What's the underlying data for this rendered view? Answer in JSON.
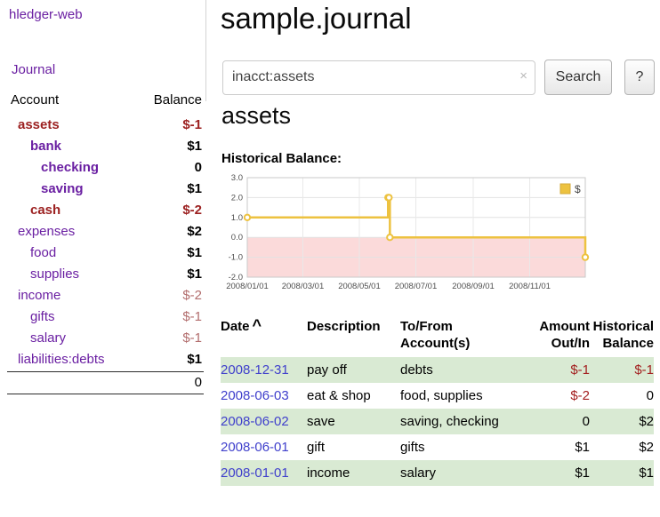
{
  "colors": {
    "link_purple": "#6a1fa2",
    "date_link_blue": "#4040cc",
    "negative_strong": "#9c2121",
    "negative_soft": "#b26d6d",
    "stripe_green": "#d9ead3",
    "chart_series_gold": "#edc240",
    "chart_negative_region_pink": "#fbdada"
  },
  "sidebar": {
    "app_title": "hledger-web",
    "journal_link": "Journal",
    "accounts_table": {
      "account_header": "Account",
      "balance_header": "Balance",
      "rows": [
        {
          "account": "assets",
          "balance": "$-1",
          "indent": 0,
          "highlighted": true,
          "account_negative": true,
          "balance_style": "neg-strong"
        },
        {
          "account": "bank",
          "balance": "$1",
          "indent": 1,
          "highlighted": true,
          "account_negative": false,
          "balance_style": ""
        },
        {
          "account": "checking",
          "balance": "0",
          "indent": 2,
          "highlighted": true,
          "account_negative": false,
          "balance_style": ""
        },
        {
          "account": "saving",
          "balance": "$1",
          "indent": 2,
          "highlighted": true,
          "account_negative": false,
          "balance_style": ""
        },
        {
          "account": "cash",
          "balance": "$-2",
          "indent": 1,
          "highlighted": true,
          "account_negative": true,
          "balance_style": "neg-strong"
        },
        {
          "account": "expenses",
          "balance": "$2",
          "indent": 0,
          "highlighted": false,
          "account_negative": false,
          "balance_style": ""
        },
        {
          "account": "food",
          "balance": "$1",
          "indent": 1,
          "highlighted": false,
          "account_negative": false,
          "balance_style": ""
        },
        {
          "account": "supplies",
          "balance": "$1",
          "indent": 1,
          "highlighted": false,
          "account_negative": false,
          "balance_style": ""
        },
        {
          "account": "income",
          "balance": "$-2",
          "indent": 0,
          "highlighted": false,
          "account_negative": false,
          "balance_style": "neg-soft"
        },
        {
          "account": "gifts",
          "balance": "$-1",
          "indent": 1,
          "highlighted": false,
          "account_negative": false,
          "balance_style": "neg-soft"
        },
        {
          "account": "salary",
          "balance": "$-1",
          "indent": 1,
          "highlighted": false,
          "account_negative": false,
          "balance_style": "neg-soft"
        },
        {
          "account": "liabilities:debts",
          "balance": "$1",
          "indent": 0,
          "highlighted": false,
          "account_negative": false,
          "balance_style": ""
        }
      ],
      "total": "0"
    }
  },
  "header": {
    "title": "sample.journal"
  },
  "search": {
    "value": "inacct:assets",
    "clear_icon": "×",
    "search_button": "Search",
    "help_button": "?"
  },
  "account_page": {
    "heading": "assets",
    "chart_title": "Historical Balance:"
  },
  "chart_data": {
    "type": "line",
    "title": "Historical Balance",
    "step": true,
    "x_unit": "days since 2008-01-01",
    "xlim": [
      0,
      365
    ],
    "ylim": [
      -2,
      3
    ],
    "grid": true,
    "negative_region_fill": "#fbdada",
    "series": [
      {
        "name": "$",
        "color": "#edc240",
        "points": [
          {
            "date": "2008-01-01",
            "x": 0,
            "y": 1
          },
          {
            "date": "2008-06-01",
            "x": 152,
            "y": 2
          },
          {
            "date": "2008-06-02",
            "x": 153,
            "y": 2
          },
          {
            "date": "2008-06-03",
            "x": 154,
            "y": 0
          },
          {
            "date": "2008-12-31",
            "x": 365,
            "y": -1
          }
        ]
      }
    ],
    "yticks": [
      {
        "label": "3.0",
        "value": 3
      },
      {
        "label": "2.0",
        "value": 2
      },
      {
        "label": "1.0",
        "value": 1
      },
      {
        "label": "0.0",
        "value": 0
      },
      {
        "label": "-1.0",
        "value": -1
      },
      {
        "label": "-2.0",
        "value": -2
      }
    ],
    "xticks": [
      {
        "label": "2008/01/01",
        "value": 0
      },
      {
        "label": "2008/03/01",
        "value": 60
      },
      {
        "label": "2008/05/01",
        "value": 121
      },
      {
        "label": "2008/07/01",
        "value": 182
      },
      {
        "label": "2008/09/01",
        "value": 244
      },
      {
        "label": "2008/11/01",
        "value": 305
      }
    ],
    "legend": {
      "position": "top-right",
      "label": "$"
    }
  },
  "register_table": {
    "headers": {
      "date": "Date",
      "sort_indicator": "^",
      "description": "Description",
      "accounts": "To/From Account(s)",
      "amount": "Amount Out/In",
      "balance": "Historical Balance"
    },
    "rows": [
      {
        "date": "2008-12-31",
        "description": "pay off",
        "accounts": "debts",
        "amount": "$-1",
        "amount_negative": true,
        "balance": "$-1",
        "balance_negative": true,
        "striped": true
      },
      {
        "date": "2008-06-03",
        "description": "eat & shop",
        "accounts": "food, supplies",
        "amount": "$-2",
        "amount_negative": true,
        "balance": "0",
        "balance_negative": false,
        "striped": false
      },
      {
        "date": "2008-06-02",
        "description": "save",
        "accounts": "saving, checking",
        "amount": "0",
        "amount_negative": false,
        "balance": "$2",
        "balance_negative": false,
        "striped": true
      },
      {
        "date": "2008-06-01",
        "description": "gift",
        "accounts": "gifts",
        "amount": "$1",
        "amount_negative": false,
        "balance": "$2",
        "balance_negative": false,
        "striped": false
      },
      {
        "date": "2008-01-01",
        "description": "income",
        "accounts": "salary",
        "amount": "$1",
        "amount_negative": false,
        "balance": "$1",
        "balance_negative": false,
        "striped": true
      }
    ]
  }
}
